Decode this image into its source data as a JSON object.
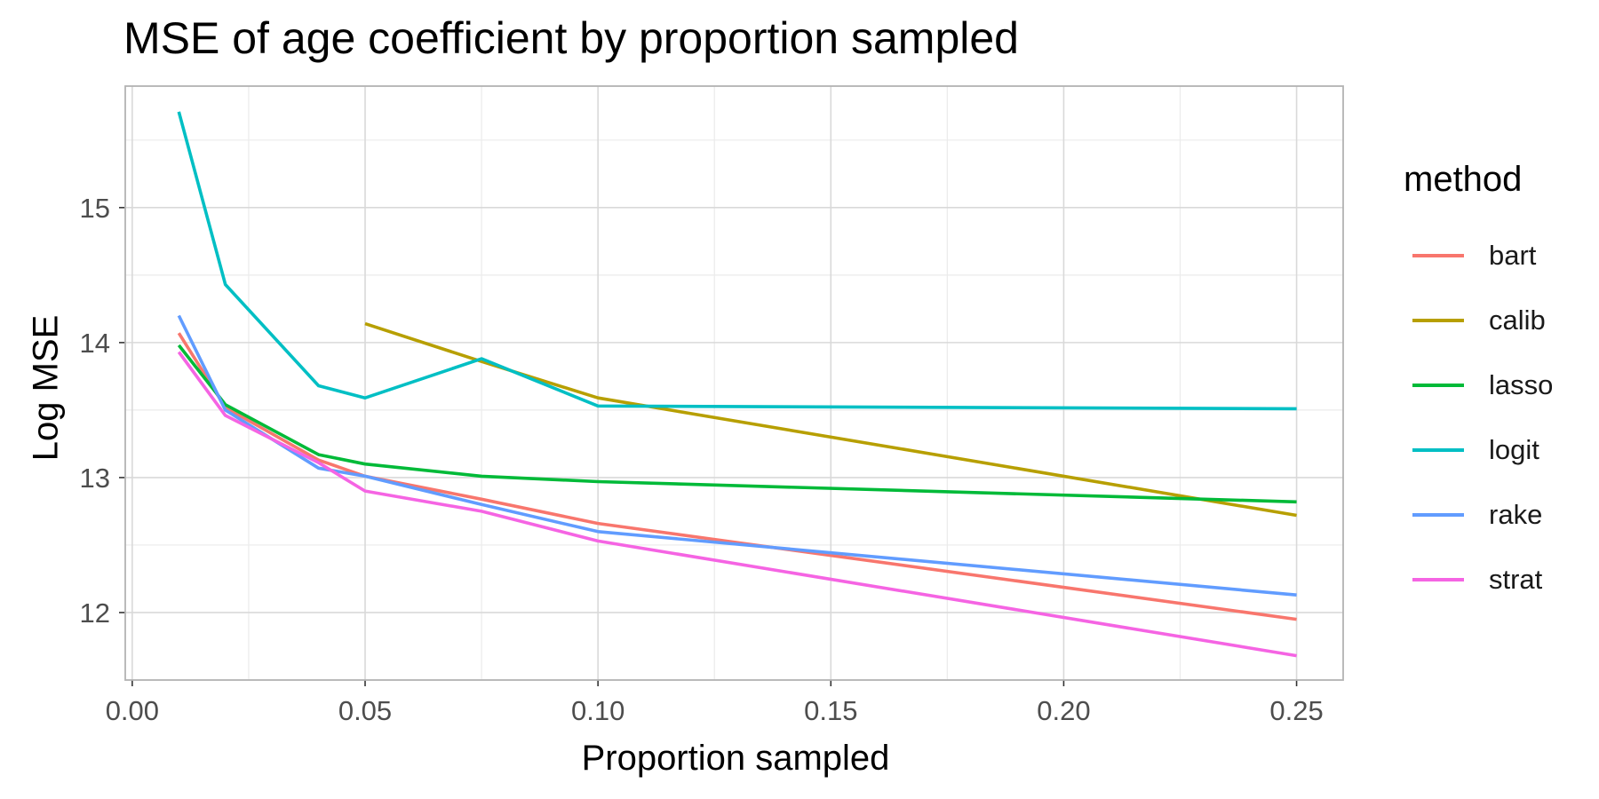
{
  "chart_data": {
    "type": "line",
    "title": "MSE of age coefficient by proportion sampled",
    "xlabel": "Proportion sampled",
    "ylabel": "Log MSE",
    "xlim": [
      -0.0015,
      0.26
    ],
    "ylim": [
      11.5,
      15.9
    ],
    "x_ticks": [
      "0.00",
      "0.05",
      "0.10",
      "0.15",
      "0.20",
      "0.25"
    ],
    "x_tick_values": [
      0,
      0.05,
      0.1,
      0.15,
      0.2,
      0.25
    ],
    "y_ticks": [
      "12",
      "13",
      "14",
      "15"
    ],
    "y_tick_values": [
      12,
      13,
      14,
      15
    ],
    "grid": true,
    "legend_title": "method",
    "legend_position": "right",
    "series": [
      {
        "name": "bart",
        "color": "#F8766D",
        "x": [
          0.01,
          0.02,
          0.04,
          0.05,
          0.075,
          0.1,
          0.25
        ],
        "y": [
          14.07,
          13.52,
          13.13,
          13.01,
          12.84,
          12.66,
          11.95
        ]
      },
      {
        "name": "calib",
        "color": "#B79F00",
        "x": [
          0.05,
          0.075,
          0.1,
          0.25
        ],
        "y": [
          14.14,
          13.86,
          13.59,
          12.72
        ]
      },
      {
        "name": "lasso",
        "color": "#00BA38",
        "x": [
          0.01,
          0.02,
          0.04,
          0.05,
          0.075,
          0.1,
          0.25
        ],
        "y": [
          13.98,
          13.54,
          13.17,
          13.1,
          13.01,
          12.97,
          12.82
        ]
      },
      {
        "name": "logit",
        "color": "#00BFC4",
        "x": [
          0.01,
          0.02,
          0.04,
          0.05,
          0.075,
          0.1,
          0.25
        ],
        "y": [
          15.71,
          14.43,
          13.68,
          13.59,
          13.88,
          13.53,
          13.51
        ]
      },
      {
        "name": "rake",
        "color": "#619CFF",
        "x": [
          0.01,
          0.02,
          0.04,
          0.05,
          0.075,
          0.1,
          0.25
        ],
        "y": [
          14.2,
          13.5,
          13.07,
          13.01,
          12.8,
          12.6,
          12.13
        ]
      },
      {
        "name": "strat",
        "color": "#F564E3",
        "x": [
          0.01,
          0.02,
          0.04,
          0.05,
          0.075,
          0.1,
          0.25
        ],
        "y": [
          13.93,
          13.46,
          13.11,
          12.9,
          12.75,
          12.53,
          11.68
        ]
      }
    ]
  }
}
